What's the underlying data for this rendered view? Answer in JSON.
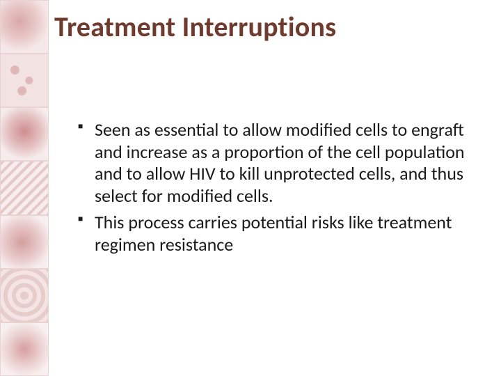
{
  "title": "Treatment Interruptions",
  "title_color": "#6e3b2e",
  "title_fontsize": 40,
  "body_fontsize": 26,
  "body_color": "#1a1a1a",
  "background_color": "#ffffff",
  "bullet_marker": "■",
  "bullets": [
    "Seen as essential to allow modified cells to engraft and increase as a proportion of the cell population and to allow HIV to kill unprotected cells, and thus select for modified cells.",
    "This process carries potential risks like treatment regimen resistance"
  ],
  "sidebar_images": [
    "virus1",
    "cells",
    "virus2",
    "dna",
    "virus3",
    "tissue",
    "virus4"
  ]
}
